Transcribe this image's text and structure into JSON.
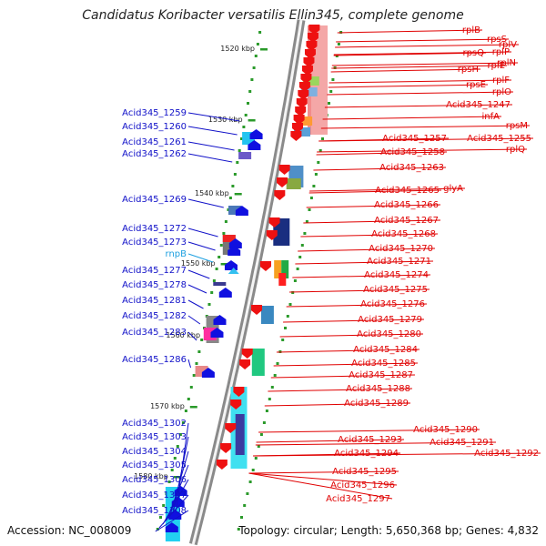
{
  "title": "Candidatus Koribacter versatilis Ellin345, complete genome",
  "accession": "Accession: NC_008009",
  "summary": "Topology: circular; Length: 5,650,368 bp; Genes: 4,832",
  "kbp_labels": [
    "1520 kbp",
    "1530 kbp",
    "1540 kbp",
    "1550 kbp",
    "1560 kbp",
    "1570 kbp",
    "1580 kbp"
  ],
  "left_genes": [
    "Acid345_1259",
    "Acid345_1260",
    "Acid345_1261",
    "Acid345_1262",
    "Acid345_1269",
    "Acid345_1272",
    "Acid345_1273",
    "rnpB",
    "Acid345_1277",
    "Acid345_1278",
    "Acid345_1281",
    "Acid345_1282",
    "Acid345_1283",
    "Acid345_1286",
    "Acid345_1302",
    "Acid345_1303",
    "Acid345_1304",
    "Acid345_1305",
    "Acid345_1306",
    "Acid345_1307",
    "Acid345_1308"
  ],
  "right_genes": [
    "rplB",
    "rpsS",
    "rplV",
    "rpsQ",
    "rplP",
    "rplN",
    "rpsH",
    "rplE",
    "rplF",
    "rpsE",
    "rplO",
    "Acid345_1247",
    "infA",
    "rpsM",
    "Acid345_1257",
    "Acid345_1255",
    "rplQ",
    "Acid345_1258",
    "Acid345_1263",
    "Acid345_1265",
    "glyA",
    "Acid345_1266",
    "Acid345_1267",
    "Acid345_1268",
    "Acid345_1270",
    "Acid345_1271",
    "Acid345_1274",
    "Acid345_1275",
    "Acid345_1276",
    "Acid345_1279",
    "Acid345_1280",
    "Acid345_1284",
    "Acid345_1285",
    "Acid345_1287",
    "Acid345_1288",
    "Acid345_1289",
    "Acid345_1290",
    "Acid345_1291",
    "Acid345_1292",
    "Acid345_1293",
    "Acid345_1294",
    "Acid345_1295",
    "Acid345_1296",
    "Acid345_1297"
  ],
  "colors": {
    "forward_label": "#1010c8",
    "reverse_label": "#e00000",
    "rna_label": "#1ea0e0",
    "backbone": "#9a9a9a",
    "tick": "#2a9a2a"
  }
}
